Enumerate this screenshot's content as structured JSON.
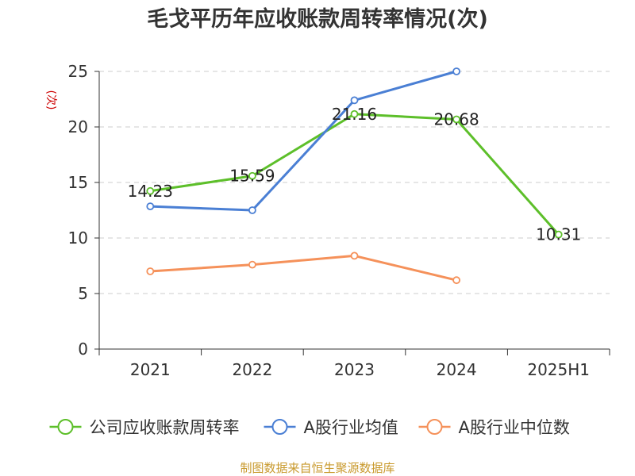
{
  "chart_data": {
    "type": "line",
    "title": "毛戈平历年应收账款周转率情况(次)",
    "ylabel": "(次)",
    "categories": [
      "2021",
      "2022",
      "2023",
      "2024",
      "2025H1"
    ],
    "ylim": [
      0,
      25
    ],
    "yticks": [
      0,
      5,
      10,
      15,
      20,
      25
    ],
    "grid": true,
    "legend_position": "bottom",
    "series": [
      {
        "name": "公司应收账款周转率",
        "color": "#5dbf2a",
        "values": [
          14.23,
          15.59,
          21.16,
          20.68,
          10.31
        ],
        "labels": [
          "14.23",
          "15.59",
          "21.16",
          "20.68",
          "10.31"
        ]
      },
      {
        "name": "A股行业均值",
        "color": "#4a7fd4",
        "values": [
          12.85,
          12.5,
          22.4,
          25.0,
          null
        ]
      },
      {
        "name": "A股行业中位数",
        "color": "#f5915a",
        "values": [
          7.0,
          7.6,
          8.4,
          6.2,
          null
        ]
      }
    ]
  },
  "source": "制图数据来自恒生聚源数据库",
  "colors": {
    "ylabel": "#cc0000",
    "source": "#c99a2e",
    "grid": "#cccccc",
    "axis": "#333333"
  }
}
